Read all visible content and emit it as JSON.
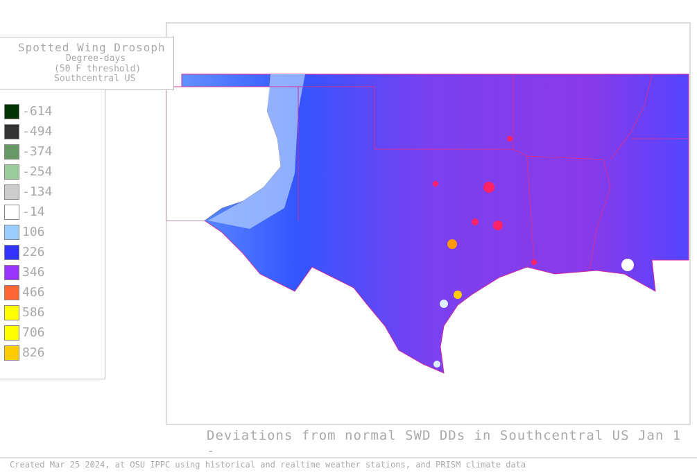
{
  "header": {
    "title_lines": [
      "Spotted Wing Drosoph",
      "Degree-days",
      "(50 F threshold)",
      "Southcentral US"
    ]
  },
  "legend": {
    "items": [
      {
        "value": -614,
        "color": "#003300"
      },
      {
        "value": -494,
        "color": "#333333"
      },
      {
        "value": -374,
        "color": "#669966"
      },
      {
        "value": -254,
        "color": "#99cc99"
      },
      {
        "value": -134,
        "color": "#cccccc"
      },
      {
        "value": -14,
        "color": "#ffffff"
      },
      {
        "value": 106,
        "color": "#99ccff"
      },
      {
        "value": 226,
        "color": "#3333ff"
      },
      {
        "value": 346,
        "color": "#9933ff"
      },
      {
        "value": 466,
        "color": "#ff6633"
      },
      {
        "value": 586,
        "color": "#ffff00"
      },
      {
        "value": 706,
        "color": "#ffff00"
      },
      {
        "value": 826,
        "color": "#ffcc00"
      }
    ]
  },
  "caption": "Deviations from normal SWD DDs in Southcentral US Jan 1 -",
  "footer": "Created Mar 25 2024, at OSU IPPC using  historical and  realtime weather stations, and PRISM climate data"
}
